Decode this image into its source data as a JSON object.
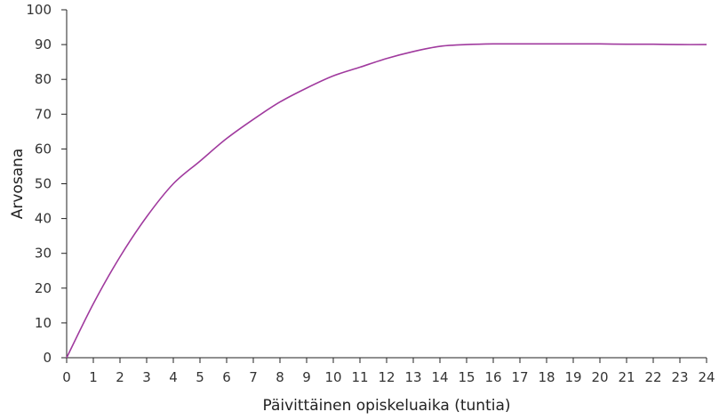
{
  "chart_data": {
    "type": "line",
    "title": "",
    "xlabel": "Päivittäinen opiskeluaika (tuntia)",
    "ylabel": "Arvosana",
    "xlim": [
      0,
      24
    ],
    "ylim": [
      0,
      100
    ],
    "x_ticks": [
      0,
      1,
      2,
      3,
      4,
      5,
      6,
      7,
      8,
      9,
      10,
      11,
      12,
      13,
      14,
      15,
      16,
      17,
      18,
      19,
      20,
      21,
      22,
      23,
      24
    ],
    "y_ticks": [
      0,
      10,
      20,
      30,
      40,
      50,
      60,
      70,
      80,
      90,
      100
    ],
    "grid": false,
    "legend": "none",
    "series": [
      {
        "color": "#a03a9e",
        "x": [
          0,
          1,
          2,
          3,
          4,
          5,
          6,
          7,
          8,
          9,
          10,
          11,
          12,
          13,
          14,
          15,
          16,
          17,
          18,
          19,
          20,
          21,
          22,
          23,
          24
        ],
        "y": [
          0,
          15.5,
          29,
          40.5,
          50,
          56.5,
          63,
          68.5,
          73.5,
          77.5,
          81,
          83.5,
          86,
          88,
          89.5,
          90,
          90.2,
          90.2,
          90.2,
          90.2,
          90.2,
          90.1,
          90.1,
          90,
          90
        ]
      }
    ]
  }
}
